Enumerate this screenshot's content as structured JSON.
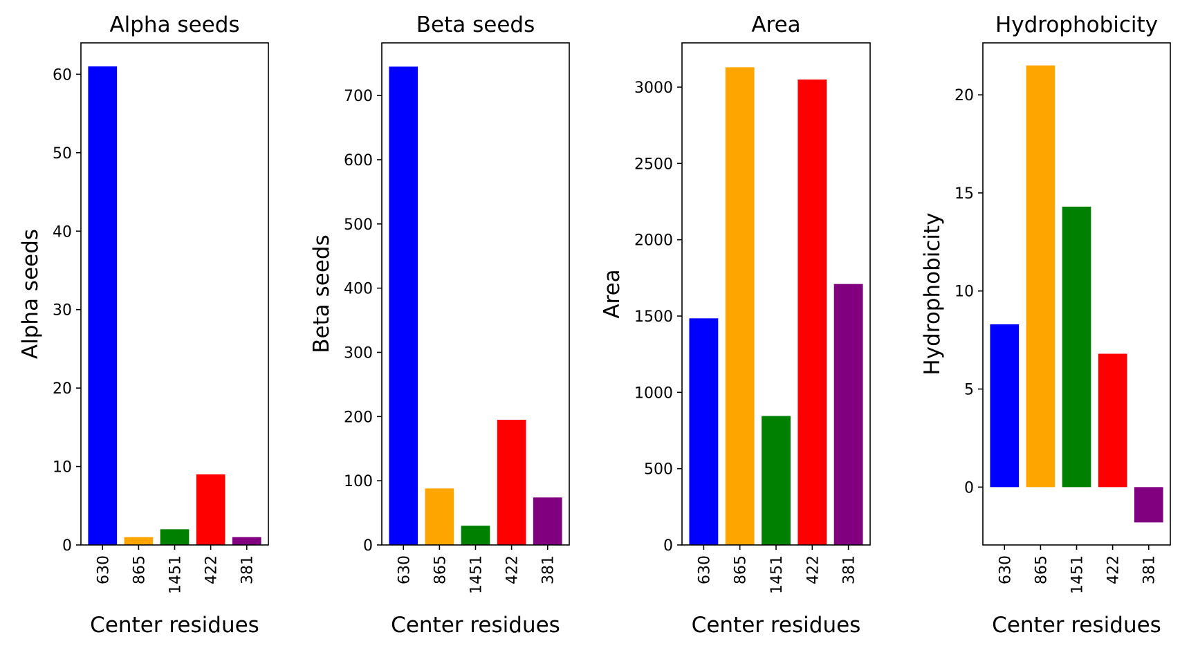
{
  "chart_data": [
    {
      "type": "bar",
      "title": "Alpha seeds",
      "xlabel": "Center residues",
      "ylabel": "Alpha seeds",
      "categories": [
        "630",
        "865",
        "1451",
        "422",
        "381"
      ],
      "values": [
        61,
        1,
        2,
        9,
        1
      ],
      "colors": [
        "#0000ff",
        "#ffa500",
        "#008000",
        "#ff0000",
        "#800080"
      ],
      "ylim": [
        0,
        64
      ],
      "yticks": [
        0,
        10,
        20,
        30,
        40,
        50,
        60
      ],
      "ytick_labels": [
        "0",
        "10",
        "20",
        "30",
        "40",
        "50",
        "60"
      ]
    },
    {
      "type": "bar",
      "title": "Beta seeds",
      "xlabel": "Center residues",
      "ylabel": "Beta seeds",
      "categories": [
        "630",
        "865",
        "1451",
        "422",
        "381"
      ],
      "values": [
        745,
        88,
        30,
        195,
        74
      ],
      "colors": [
        "#0000ff",
        "#ffa500",
        "#008000",
        "#ff0000",
        "#800080"
      ],
      "ylim": [
        0,
        782
      ],
      "yticks": [
        0,
        100,
        200,
        300,
        400,
        500,
        600,
        700
      ],
      "ytick_labels": [
        "0",
        "100",
        "200",
        "300",
        "400",
        "500",
        "600",
        "700"
      ]
    },
    {
      "type": "bar",
      "title": "Area",
      "xlabel": "Center residues",
      "ylabel": "Area",
      "categories": [
        "630",
        "865",
        "1451",
        "422",
        "381"
      ],
      "values": [
        1485,
        3130,
        845,
        3050,
        1710
      ],
      "colors": [
        "#0000ff",
        "#ffa500",
        "#008000",
        "#ff0000",
        "#800080"
      ],
      "ylim": [
        0,
        3290
      ],
      "yticks": [
        0,
        500,
        1000,
        1500,
        2000,
        2500,
        3000
      ],
      "ytick_labels": [
        "0",
        "500",
        "1000",
        "1500",
        "2000",
        "2500",
        "3000"
      ]
    },
    {
      "type": "bar",
      "title": "Hydrophobicity",
      "xlabel": "Center residues",
      "ylabel": "Hydrophobicity",
      "categories": [
        "630",
        "865",
        "1451",
        "422",
        "381"
      ],
      "values": [
        8.3,
        21.5,
        14.3,
        6.8,
        -1.8
      ],
      "colors": [
        "#0000ff",
        "#ffa500",
        "#008000",
        "#ff0000",
        "#800080"
      ],
      "ylim": [
        -2.95,
        22.65
      ],
      "yticks": [
        0,
        5,
        10,
        15,
        20
      ],
      "ytick_labels": [
        "0",
        "5",
        "10",
        "15",
        "20"
      ]
    }
  ]
}
